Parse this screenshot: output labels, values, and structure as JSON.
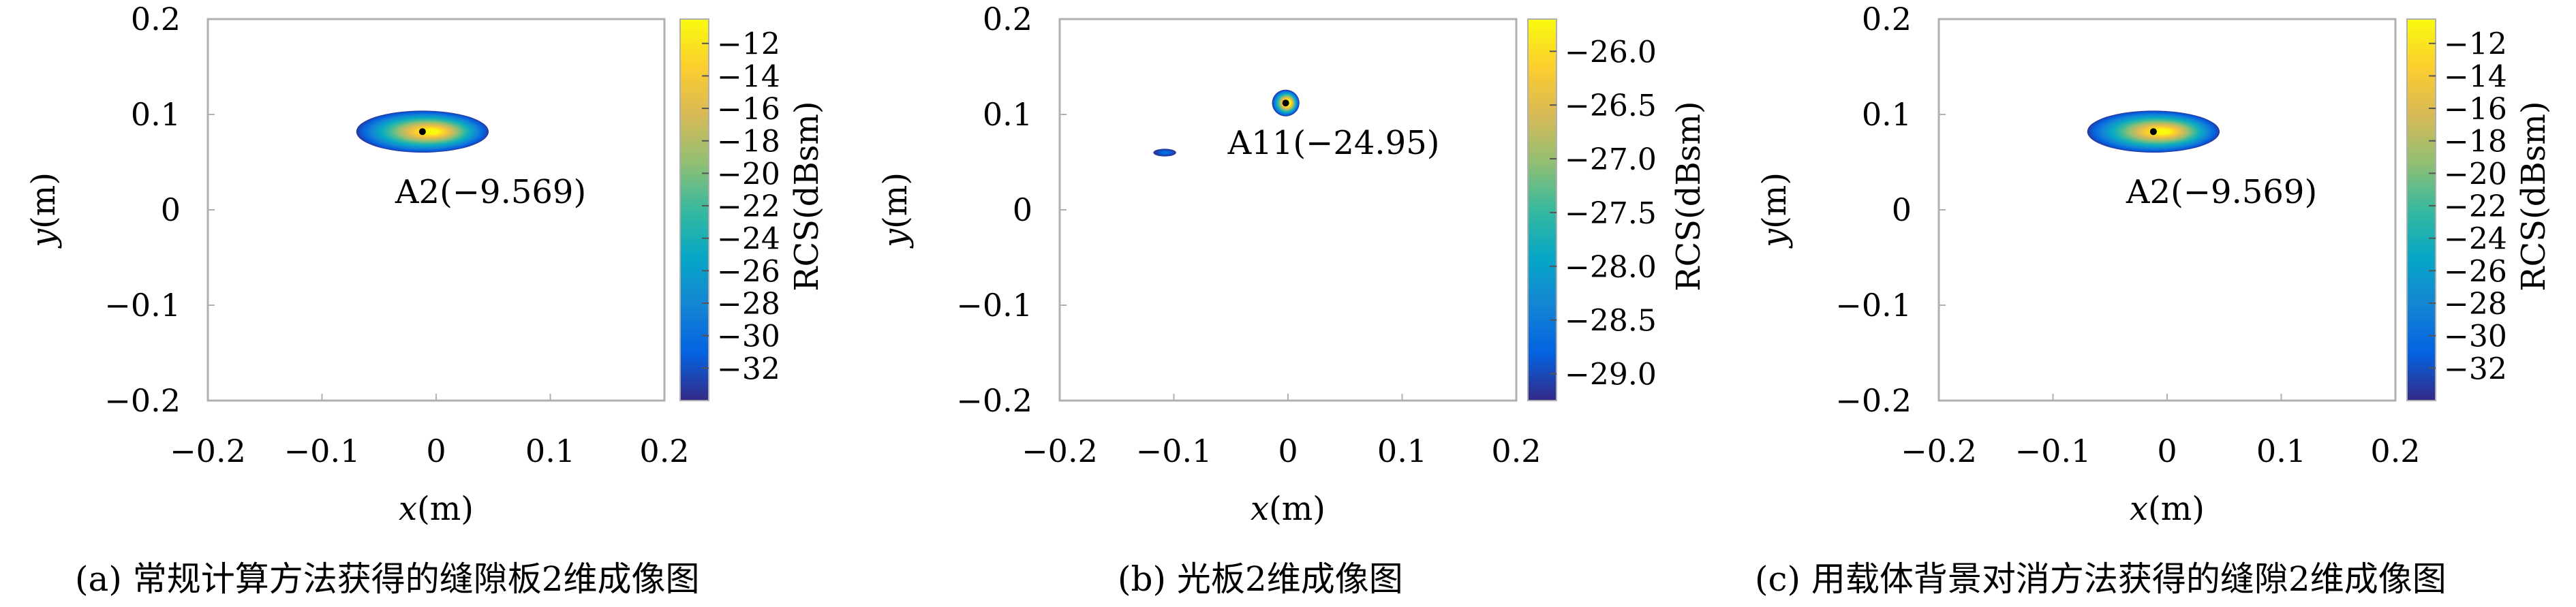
{
  "chart_data": [
    {
      "type": "heatmap",
      "caption": "(a) 常规计算方法获得的缝隙板2维成像图",
      "xlabel_italic": "x",
      "xlabel_unit": "(m)",
      "ylabel_italic": "y",
      "ylabel_unit": "(m)",
      "xlim": [
        -0.2,
        0.2
      ],
      "ylim": [
        -0.2,
        0.2
      ],
      "xticks": [
        "−0.2",
        "−0.1",
        "0",
        "0.1",
        "0.2"
      ],
      "yticks": [
        "0.2",
        "0.1",
        "0",
        "−0.1",
        "−0.2"
      ],
      "colorbar": {
        "label": "RCS(dBsm)",
        "range": [
          -34,
          -10.5
        ],
        "ticks": [
          "−12",
          "−14",
          "−16",
          "−18",
          "−20",
          "−22",
          "−24",
          "−26",
          "−28",
          "−30",
          "−32"
        ],
        "tick_values": [
          -12,
          -14,
          -16,
          -18,
          -20,
          -22,
          -24,
          -26,
          -28,
          -30,
          -32
        ]
      },
      "blobs": [
        {
          "cx": -0.012,
          "cy": 0.082,
          "rx": 0.058,
          "ry": 0.022,
          "peak": -9.569,
          "floor": -33
        }
      ],
      "annotation": {
        "text": "A2(−9.569)",
        "x": -0.012,
        "y": 0.082
      }
    },
    {
      "type": "heatmap",
      "caption": "(b) 光板2维成像图",
      "xlabel_italic": "x",
      "xlabel_unit": "(m)",
      "ylabel_italic": "y",
      "ylabel_unit": "(m)",
      "xlim": [
        -0.2,
        0.2
      ],
      "ylim": [
        -0.2,
        0.2
      ],
      "xticks": [
        "−0.2",
        "−0.1",
        "0",
        "0.1",
        "0.2"
      ],
      "yticks": [
        "0.2",
        "0.1",
        "0",
        "−0.1",
        "−0.2"
      ],
      "colorbar": {
        "label": "RCS(dBsm)",
        "range": [
          -29.25,
          -25.7
        ],
        "ticks": [
          "−26.0",
          "−26.5",
          "−27.0",
          "−27.5",
          "−28.0",
          "−28.5",
          "−29.0"
        ],
        "tick_values": [
          -26.0,
          -26.5,
          -27.0,
          -27.5,
          -28.0,
          -28.5,
          -29.0
        ]
      },
      "blobs": [
        {
          "cx": -0.002,
          "cy": 0.112,
          "rx": 0.012,
          "ry": 0.014,
          "peak": -24.95,
          "floor": -29.2
        },
        {
          "cx": -0.108,
          "cy": 0.06,
          "rx": 0.01,
          "ry": 0.004,
          "peak": -28.6,
          "floor": -29.2
        }
      ],
      "annotation": {
        "text": "A11(−24.95)",
        "x": -0.002,
        "y": 0.112
      }
    },
    {
      "type": "heatmap",
      "caption": "(c) 用载体背景对消方法获得的缝隙2维成像图",
      "xlabel_italic": "x",
      "xlabel_unit": "(m)",
      "ylabel_italic": "y",
      "ylabel_unit": "(m)",
      "xlim": [
        -0.2,
        0.2
      ],
      "ylim": [
        -0.2,
        0.2
      ],
      "xticks": [
        "−0.2",
        "−0.1",
        "0",
        "0.1",
        "0.2"
      ],
      "yticks": [
        "0.2",
        "0.1",
        "0",
        "−0.1",
        "−0.2"
      ],
      "colorbar": {
        "label": "RCS(dBsm)",
        "range": [
          -34,
          -10.5
        ],
        "ticks": [
          "−12",
          "−14",
          "−16",
          "−18",
          "−20",
          "−22",
          "−24",
          "−26",
          "−28",
          "−30",
          "−32"
        ],
        "tick_values": [
          -12,
          -14,
          -16,
          -18,
          -20,
          -22,
          -24,
          -26,
          -28,
          -30,
          -32
        ]
      },
      "blobs": [
        {
          "cx": -0.012,
          "cy": 0.082,
          "rx": 0.058,
          "ry": 0.022,
          "peak": -9.569,
          "floor": -33
        }
      ],
      "annotation": {
        "text": "A2(−9.569)",
        "x": -0.012,
        "y": 0.082
      }
    }
  ],
  "colors": {
    "parula": [
      "#352a87",
      "#0363e1",
      "#1485d4",
      "#06a7c6",
      "#38b99e",
      "#92bf73",
      "#d9ba56",
      "#fcce2e",
      "#f9fb0e"
    ],
    "axis": "#b0b0b0",
    "text": "#000000"
  }
}
